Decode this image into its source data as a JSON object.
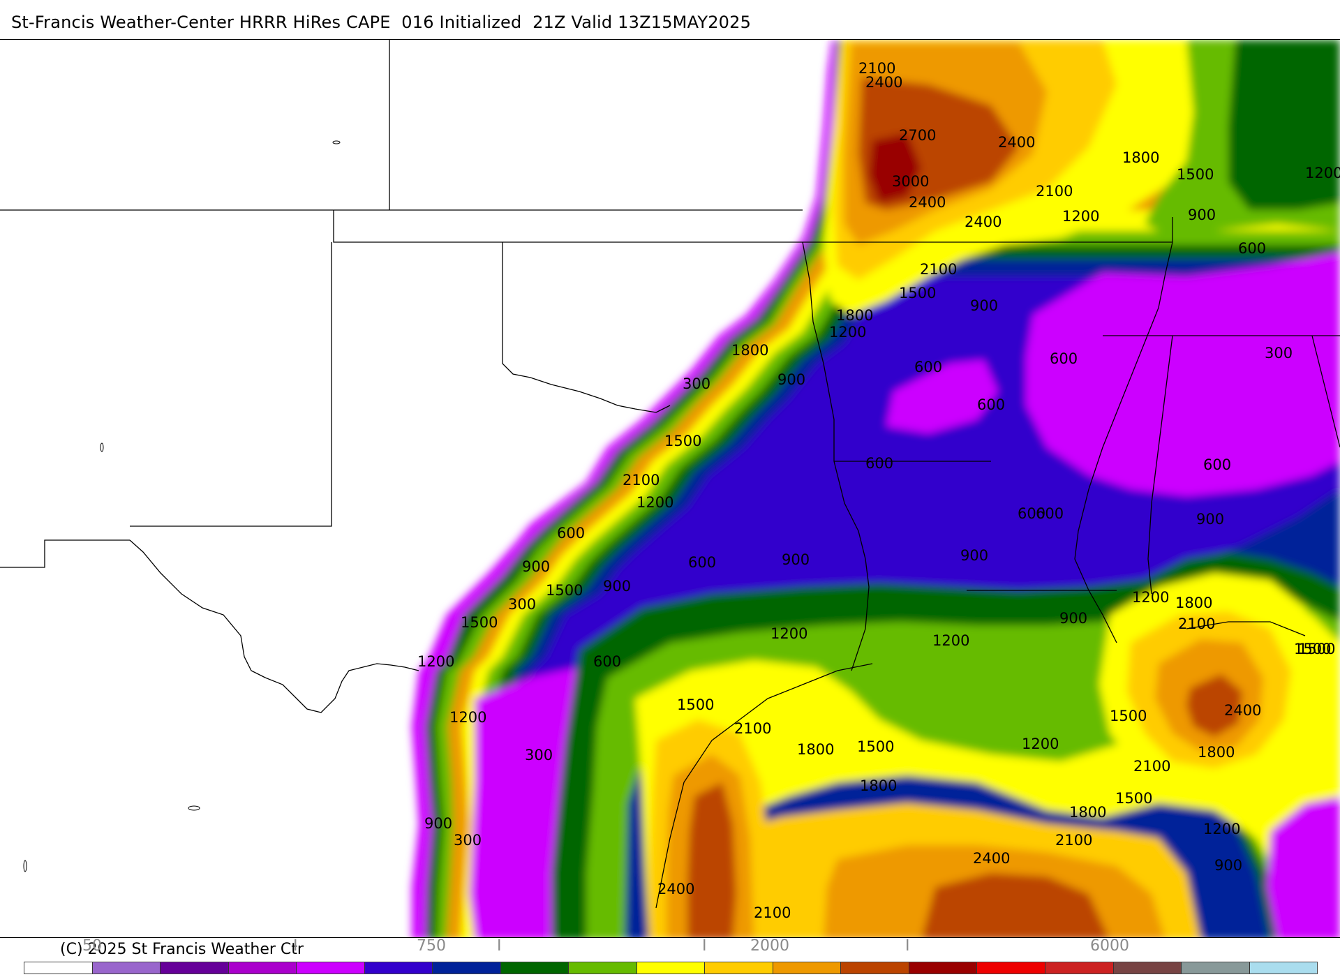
{
  "title": "St-Francis Weather-Center HRRR HiRes CAPE  016 Initialized  21Z Valid 13Z15MAY2025",
  "copyright": "(C) 2025 St Francis Weather Ctr",
  "colorbar": {
    "tick_labels": [
      "50",
      "I",
      "750",
      "I",
      "I",
      "2000",
      "I",
      "6000"
    ],
    "colors": [
      "#ffffff",
      "#9966cc",
      "#660099",
      "#aa00cc",
      "#cc00ff",
      "#3300cc",
      "#002299",
      "#006600",
      "#66bb00",
      "#ffff00",
      "#ffcc00",
      "#ee9900",
      "#bb4400",
      "#990000",
      "#ee0000",
      "#cc2222",
      "#774444",
      "#889999",
      "#aaddee"
    ]
  },
  "contour_labels": [
    "2100",
    "2400",
    "2700",
    "2400",
    "3000",
    "2400",
    "2400",
    "1800",
    "2100",
    "1500",
    "1200",
    "1200",
    "900",
    "600",
    "2100",
    "1500",
    "900",
    "1800",
    "1200",
    "1800",
    "900",
    "600",
    "600",
    "600",
    "300",
    "300",
    "1500",
    "600",
    "600",
    "2100",
    "1200",
    "600",
    "900",
    "600",
    "600",
    "900",
    "900",
    "900",
    "600",
    "1500",
    "900",
    "300",
    "1500",
    "1200",
    "1200",
    "1800",
    "2100",
    "1200",
    "1200",
    "900",
    "1500",
    "600",
    "1200",
    "1500",
    "2100",
    "300",
    "1800",
    "1500",
    "1500",
    "1200",
    "2400",
    "1800",
    "1800",
    "2100",
    "1500",
    "1800",
    "900",
    "300",
    "1200",
    "2100",
    "900",
    "2400",
    "2400",
    "2100",
    "1500"
  ]
}
